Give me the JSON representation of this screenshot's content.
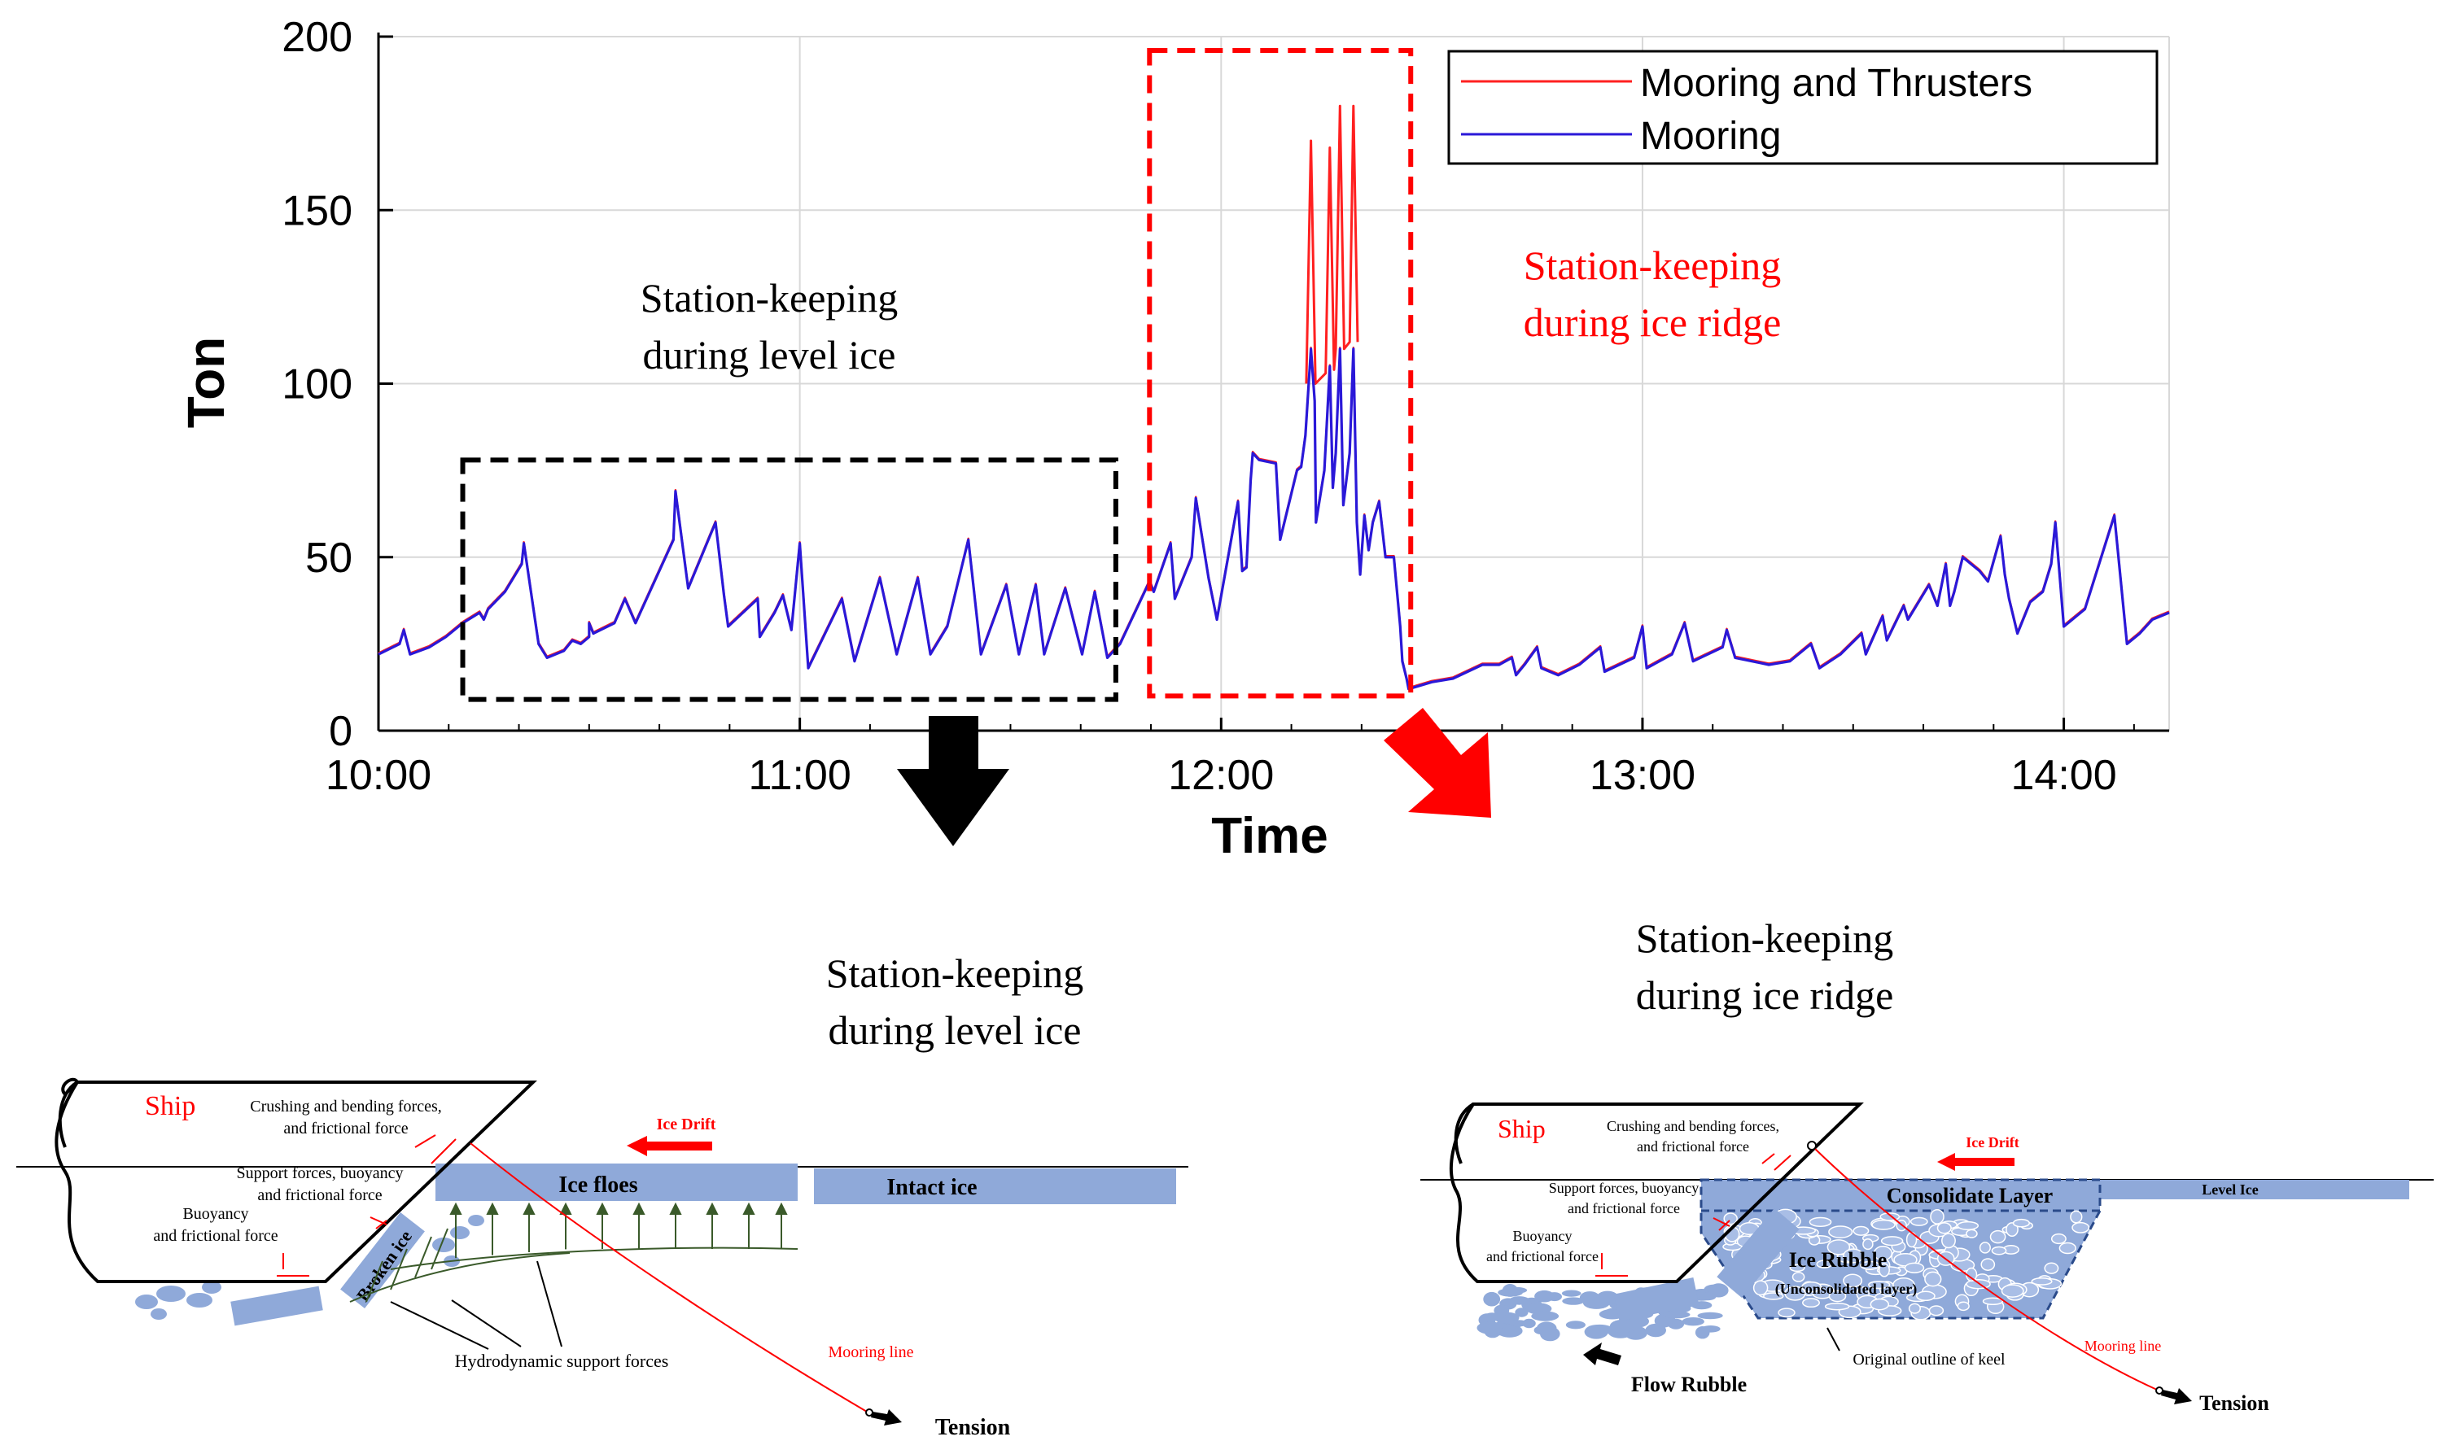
{
  "chart_data": {
    "type": "line",
    "xlabel": "Time",
    "ylabel": "Ton",
    "xlim": [
      10.0,
      14.25
    ],
    "ylim": [
      0,
      200
    ],
    "x_ticks": [
      {
        "value": 10,
        "label": "10:00"
      },
      {
        "value": 11,
        "label": "11:00"
      },
      {
        "value": 12,
        "label": "12:00"
      },
      {
        "value": 13,
        "label": "13:00"
      },
      {
        "value": 14,
        "label": "14:00"
      }
    ],
    "y_ticks": [
      {
        "value": 0,
        "label": "0"
      },
      {
        "value": 50,
        "label": "50"
      },
      {
        "value": 100,
        "label": "100"
      },
      {
        "value": 150,
        "label": "150"
      },
      {
        "value": 200,
        "label": "200"
      }
    ],
    "grid": true,
    "legend_position": "top-right",
    "series": [
      {
        "name": "Mooring and Thrusters",
        "color": "#ff2020",
        "points": [
          [
            12.202,
            100
          ],
          [
            12.213,
            170
          ],
          [
            12.224,
            100
          ],
          [
            12.248,
            103
          ],
          [
            12.258,
            168
          ],
          [
            12.268,
            104
          ],
          [
            12.272,
            110
          ],
          [
            12.282,
            180
          ],
          [
            12.292,
            110
          ],
          [
            12.305,
            112
          ],
          [
            12.314,
            180
          ],
          [
            12.324,
            112
          ]
        ]
      },
      {
        "name": "Mooring",
        "color": "#2a18d8",
        "points": [
          [
            10.0,
            22
          ],
          [
            10.05,
            25
          ],
          [
            10.06,
            29
          ],
          [
            10.075,
            22
          ],
          [
            10.12,
            24
          ],
          [
            10.16,
            27
          ],
          [
            10.2,
            31
          ],
          [
            10.24,
            34
          ],
          [
            10.25,
            32
          ],
          [
            10.26,
            35
          ],
          [
            10.3,
            40
          ],
          [
            10.34,
            48
          ],
          [
            10.345,
            54
          ],
          [
            10.38,
            25
          ],
          [
            10.4,
            21
          ],
          [
            10.44,
            23
          ],
          [
            10.46,
            26
          ],
          [
            10.48,
            25
          ],
          [
            10.5,
            27
          ],
          [
            10.5,
            31
          ],
          [
            10.51,
            28
          ],
          [
            10.56,
            31
          ],
          [
            10.585,
            38
          ],
          [
            10.61,
            31
          ],
          [
            10.7,
            55
          ],
          [
            10.705,
            69
          ],
          [
            10.735,
            41
          ],
          [
            10.8,
            60
          ],
          [
            10.82,
            39
          ],
          [
            10.83,
            30
          ],
          [
            10.9,
            38
          ],
          [
            10.905,
            27
          ],
          [
            10.94,
            34
          ],
          [
            10.96,
            39
          ],
          [
            10.98,
            29
          ],
          [
            11.0,
            54
          ],
          [
            11.02,
            18
          ],
          [
            11.1,
            38
          ],
          [
            11.13,
            20
          ],
          [
            11.19,
            44
          ],
          [
            11.23,
            22
          ],
          [
            11.28,
            44
          ],
          [
            11.31,
            22
          ],
          [
            11.35,
            30
          ],
          [
            11.4,
            55
          ],
          [
            11.43,
            22
          ],
          [
            11.49,
            42
          ],
          [
            11.52,
            22
          ],
          [
            11.56,
            42
          ],
          [
            11.58,
            22
          ],
          [
            11.63,
            41
          ],
          [
            11.67,
            22
          ],
          [
            11.7,
            40
          ],
          [
            11.73,
            21
          ],
          [
            11.76,
            25
          ],
          [
            11.83,
            43
          ],
          [
            11.84,
            40
          ],
          [
            11.88,
            54
          ],
          [
            11.89,
            38
          ],
          [
            11.93,
            50
          ],
          [
            11.94,
            67
          ],
          [
            11.97,
            44
          ],
          [
            11.99,
            32
          ],
          [
            12.04,
            66
          ],
          [
            12.05,
            46
          ],
          [
            12.06,
            47
          ],
          [
            12.07,
            72
          ],
          [
            12.075,
            80
          ],
          [
            12.09,
            78
          ],
          [
            12.13,
            77
          ],
          [
            12.14,
            55
          ],
          [
            12.18,
            75
          ],
          [
            12.19,
            76
          ],
          [
            12.2,
            85
          ],
          [
            12.213,
            110
          ],
          [
            12.222,
            95
          ],
          [
            12.225,
            60
          ],
          [
            12.245,
            75
          ],
          [
            12.258,
            105
          ],
          [
            12.265,
            70
          ],
          [
            12.272,
            80
          ],
          [
            12.282,
            110
          ],
          [
            12.29,
            65
          ],
          [
            12.305,
            80
          ],
          [
            12.314,
            110
          ],
          [
            12.322,
            60
          ],
          [
            12.33,
            45
          ],
          [
            12.34,
            62
          ],
          [
            12.35,
            52
          ],
          [
            12.36,
            60
          ],
          [
            12.375,
            66
          ],
          [
            12.39,
            50
          ],
          [
            12.41,
            50
          ],
          [
            12.425,
            30
          ],
          [
            12.43,
            20
          ],
          [
            12.44,
            15
          ],
          [
            12.445,
            12
          ],
          [
            12.5,
            14
          ],
          [
            12.55,
            15
          ],
          [
            12.62,
            19
          ],
          [
            12.66,
            19
          ],
          [
            12.69,
            21
          ],
          [
            12.7,
            16
          ],
          [
            12.72,
            19
          ],
          [
            12.75,
            24
          ],
          [
            12.76,
            18
          ],
          [
            12.8,
            16
          ],
          [
            12.85,
            19
          ],
          [
            12.9,
            24
          ],
          [
            12.91,
            17
          ],
          [
            12.98,
            21
          ],
          [
            13.0,
            30
          ],
          [
            13.01,
            18
          ],
          [
            13.07,
            22
          ],
          [
            13.1,
            31
          ],
          [
            13.12,
            20
          ],
          [
            13.19,
            24
          ],
          [
            13.2,
            29
          ],
          [
            13.22,
            21
          ],
          [
            13.3,
            19
          ],
          [
            13.35,
            20
          ],
          [
            13.4,
            25
          ],
          [
            13.42,
            18
          ],
          [
            13.47,
            22
          ],
          [
            13.52,
            28
          ],
          [
            13.53,
            22
          ],
          [
            13.57,
            33
          ],
          [
            13.58,
            26
          ],
          [
            13.62,
            36
          ],
          [
            13.63,
            32
          ],
          [
            13.68,
            42
          ],
          [
            13.7,
            36
          ],
          [
            13.71,
            42
          ],
          [
            13.72,
            48
          ],
          [
            13.73,
            36
          ],
          [
            13.74,
            40
          ],
          [
            13.76,
            50
          ],
          [
            13.8,
            46
          ],
          [
            13.82,
            43
          ],
          [
            13.85,
            56
          ],
          [
            13.86,
            45
          ],
          [
            13.87,
            38
          ],
          [
            13.89,
            28
          ],
          [
            13.92,
            37
          ],
          [
            13.95,
            40
          ],
          [
            13.97,
            48
          ],
          [
            13.98,
            60
          ],
          [
            14.0,
            30
          ],
          [
            14.05,
            35
          ],
          [
            14.12,
            62
          ],
          [
            14.15,
            25
          ],
          [
            14.18,
            28
          ],
          [
            14.21,
            32
          ],
          [
            14.25,
            34
          ]
        ]
      }
    ],
    "annotations": [
      {
        "id": "level",
        "color": "#000000",
        "lines": [
          "Station-keeping",
          "during level ice"
        ]
      },
      {
        "id": "ridge",
        "color": "#ff0000",
        "lines": [
          "Station-keeping",
          "during ice ridge"
        ]
      }
    ],
    "highlight_boxes": [
      {
        "id": "level",
        "x0": 10.2,
        "x1": 11.75,
        "y0": 9,
        "y1": 78,
        "color": "#000000"
      },
      {
        "id": "ridge",
        "x0": 11.83,
        "x1": 12.45,
        "y0": 10,
        "y1": 196,
        "color": "#ff0000"
      }
    ]
  },
  "diagram_level": {
    "title": [
      "Station-keeping",
      "during level ice"
    ],
    "labels": {
      "ship": "Ship",
      "crushing": [
        "Crushing and bending forces,",
        "and frictional force"
      ],
      "support": [
        "Support forces, buoyancy",
        "and frictional force"
      ],
      "buoyancy": [
        "Buoyancy",
        "and frictional force"
      ],
      "ice_drift": "Ice Drift",
      "ice_floes": "Ice floes",
      "intact_ice": "Intact ice",
      "broken_ice": "Broken ice",
      "hydro": "Hydrodynamic support forces",
      "mooring_line": "Mooring line",
      "tension": "Tension"
    }
  },
  "diagram_ridge": {
    "title": [
      "Station-keeping",
      "during ice ridge"
    ],
    "labels": {
      "ship": "Ship",
      "crushing": [
        "Crushing and bending forces,",
        "and frictional force"
      ],
      "support": [
        "Support forces, buoyancy",
        "and frictional force"
      ],
      "buoyancy": [
        "Buoyancy",
        "and frictional force"
      ],
      "ice_drift": "Ice Drift",
      "consolidate": "Consolidate Layer",
      "level_ice": "Level Ice",
      "ice_rubble": "Ice Rubble",
      "unconsolidated": "(Unconsolidated layer)",
      "outline": "Original outline of keel",
      "mooring_line": "Mooring line",
      "flow_rubble": "Flow Rubble",
      "tension": "Tension"
    }
  }
}
